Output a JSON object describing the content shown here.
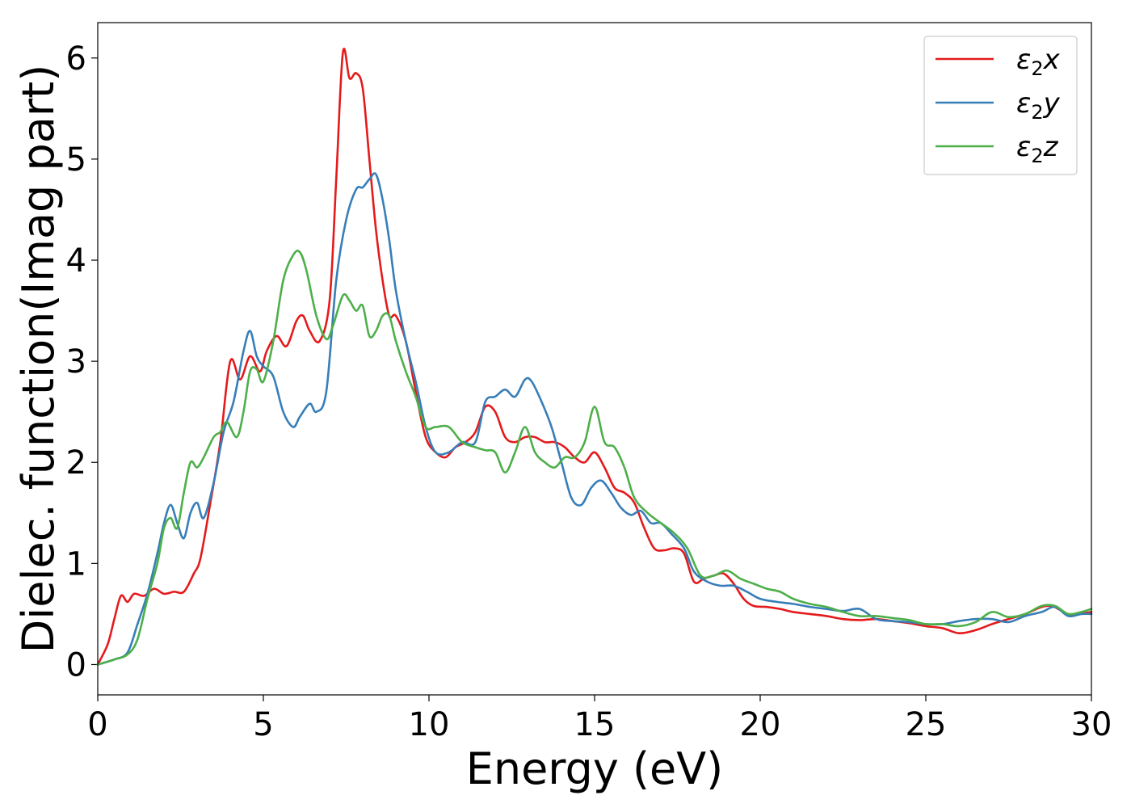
{
  "chart_data": {
    "type": "line",
    "title": "",
    "xlabel": "Energy (eV)",
    "ylabel": "Dielec. function(Imag part)",
    "xlim": [
      0,
      30
    ],
    "ylim": [
      -0.3,
      6.35
    ],
    "xticks": [
      0,
      5,
      10,
      15,
      20,
      25,
      30
    ],
    "yticks": [
      0,
      1,
      2,
      3,
      4,
      5,
      6
    ],
    "grid": false,
    "legend_position": "top-right",
    "series": [
      {
        "name": "ε2x",
        "legend_base": "ε",
        "legend_sub": "2",
        "legend_suffix": "x",
        "color": "#e41a1c",
        "x": [
          0,
          0.3,
          0.5,
          0.7,
          0.9,
          1.1,
          1.4,
          1.7,
          2.0,
          2.3,
          2.6,
          2.9,
          3.1,
          3.4,
          3.7,
          4.0,
          4.3,
          4.6,
          4.9,
          5.1,
          5.4,
          5.7,
          6.0,
          6.2,
          6.4,
          6.7,
          7.0,
          7.2,
          7.4,
          7.6,
          7.8,
          8.0,
          8.2,
          8.4,
          8.6,
          8.8,
          9.0,
          9.3,
          9.6,
          9.9,
          10.2,
          10.5,
          10.8,
          11.1,
          11.4,
          11.7,
          12.0,
          12.3,
          12.6,
          12.9,
          13.2,
          13.5,
          13.8,
          14.1,
          14.4,
          14.7,
          15.0,
          15.3,
          15.6,
          15.9,
          16.2,
          16.5,
          16.8,
          17.1,
          17.4,
          17.7,
          18.0,
          18.3,
          18.6,
          18.9,
          19.2,
          19.5,
          19.8,
          20.2,
          20.6,
          21.0,
          21.5,
          22.0,
          22.5,
          23.0,
          23.5,
          24.0,
          24.5,
          25.0,
          25.5,
          26.0,
          26.5,
          27.0,
          27.5,
          28.0,
          28.5,
          28.8,
          29.0,
          29.3,
          29.6,
          30.0
        ],
        "y": [
          0.0,
          0.2,
          0.45,
          0.68,
          0.62,
          0.7,
          0.68,
          0.75,
          0.7,
          0.72,
          0.72,
          0.9,
          1.05,
          1.6,
          2.2,
          3.0,
          2.82,
          3.05,
          2.9,
          3.1,
          3.25,
          3.15,
          3.4,
          3.45,
          3.3,
          3.2,
          3.6,
          4.8,
          6.05,
          5.8,
          5.85,
          5.7,
          5.0,
          4.3,
          3.8,
          3.45,
          3.45,
          3.2,
          2.7,
          2.25,
          2.1,
          2.05,
          2.15,
          2.2,
          2.3,
          2.55,
          2.5,
          2.25,
          2.2,
          2.25,
          2.25,
          2.2,
          2.2,
          2.15,
          2.05,
          2.0,
          2.1,
          1.95,
          1.75,
          1.7,
          1.6,
          1.35,
          1.15,
          1.13,
          1.15,
          1.1,
          0.82,
          0.85,
          0.88,
          0.9,
          0.8,
          0.65,
          0.58,
          0.57,
          0.55,
          0.52,
          0.5,
          0.48,
          0.45,
          0.44,
          0.45,
          0.43,
          0.41,
          0.38,
          0.36,
          0.31,
          0.34,
          0.4,
          0.45,
          0.5,
          0.57,
          0.58,
          0.55,
          0.5,
          0.5,
          0.52
        ]
      },
      {
        "name": "ε2y",
        "legend_base": "ε",
        "legend_sub": "2",
        "legend_suffix": "y",
        "color": "#377eb8",
        "x": [
          0,
          0.5,
          0.9,
          1.2,
          1.5,
          1.8,
          2.0,
          2.2,
          2.4,
          2.6,
          2.8,
          3.0,
          3.2,
          3.5,
          3.8,
          4.1,
          4.4,
          4.6,
          4.8,
          5.0,
          5.3,
          5.6,
          5.9,
          6.1,
          6.4,
          6.6,
          6.9,
          7.2,
          7.5,
          7.8,
          8.0,
          8.2,
          8.4,
          8.6,
          8.8,
          9.0,
          9.3,
          9.6,
          9.9,
          10.2,
          10.6,
          11.0,
          11.4,
          11.7,
          12.0,
          12.3,
          12.6,
          12.9,
          13.1,
          13.4,
          13.7,
          14.0,
          14.3,
          14.6,
          14.9,
          15.2,
          15.5,
          15.8,
          16.1,
          16.4,
          16.7,
          17.0,
          17.3,
          17.7,
          18.0,
          18.4,
          18.8,
          19.2,
          19.6,
          20.0,
          20.5,
          21.0,
          21.5,
          22.0,
          22.5,
          23.0,
          23.5,
          24.0,
          24.5,
          25.0,
          25.5,
          26.0,
          26.5,
          27.0,
          27.5,
          28.0,
          28.5,
          28.9,
          29.3,
          29.7,
          30.0
        ],
        "y": [
          0.0,
          0.05,
          0.12,
          0.4,
          0.7,
          1.1,
          1.4,
          1.58,
          1.4,
          1.25,
          1.5,
          1.6,
          1.45,
          1.8,
          2.3,
          2.6,
          3.1,
          3.3,
          3.05,
          2.95,
          2.85,
          2.5,
          2.35,
          2.45,
          2.58,
          2.5,
          2.7,
          3.8,
          4.4,
          4.7,
          4.72,
          4.8,
          4.85,
          4.6,
          4.2,
          3.7,
          3.2,
          2.8,
          2.35,
          2.1,
          2.1,
          2.2,
          2.2,
          2.6,
          2.65,
          2.72,
          2.65,
          2.82,
          2.8,
          2.6,
          2.35,
          2.0,
          1.65,
          1.58,
          1.75,
          1.82,
          1.7,
          1.55,
          1.48,
          1.52,
          1.4,
          1.4,
          1.3,
          1.15,
          0.92,
          0.82,
          0.78,
          0.78,
          0.72,
          0.65,
          0.62,
          0.6,
          0.57,
          0.55,
          0.53,
          0.55,
          0.45,
          0.43,
          0.42,
          0.4,
          0.4,
          0.43,
          0.45,
          0.45,
          0.42,
          0.48,
          0.52,
          0.57,
          0.48,
          0.5,
          0.5
        ]
      },
      {
        "name": "ε2z",
        "legend_base": "ε",
        "legend_sub": "2",
        "legend_suffix": "z",
        "color": "#4daf4a",
        "x": [
          0,
          0.5,
          0.9,
          1.2,
          1.5,
          1.8,
          2.0,
          2.2,
          2.4,
          2.6,
          2.8,
          3.0,
          3.2,
          3.5,
          3.7,
          3.9,
          4.2,
          4.4,
          4.6,
          4.8,
          5.0,
          5.3,
          5.6,
          5.9,
          6.1,
          6.3,
          6.6,
          6.9,
          7.1,
          7.4,
          7.6,
          7.8,
          8.0,
          8.2,
          8.4,
          8.6,
          8.8,
          9.0,
          9.3,
          9.6,
          9.9,
          10.2,
          10.6,
          11.0,
          11.4,
          11.7,
          12.0,
          12.3,
          12.6,
          12.9,
          13.2,
          13.5,
          13.8,
          14.1,
          14.4,
          14.7,
          15.0,
          15.3,
          15.6,
          15.9,
          16.2,
          16.6,
          17.0,
          17.4,
          17.8,
          18.2,
          18.6,
          19.0,
          19.4,
          19.8,
          20.2,
          20.6,
          21.0,
          21.5,
          22.0,
          22.5,
          23.0,
          23.5,
          24.0,
          24.5,
          25.0,
          25.5,
          26.0,
          26.5,
          27.0,
          27.5,
          28.0,
          28.5,
          28.9,
          29.3,
          29.7,
          30.0
        ],
        "y": [
          0.0,
          0.05,
          0.1,
          0.25,
          0.65,
          1.0,
          1.35,
          1.45,
          1.35,
          1.7,
          2.0,
          1.95,
          2.05,
          2.25,
          2.3,
          2.4,
          2.25,
          2.5,
          2.9,
          2.92,
          2.8,
          3.2,
          3.8,
          4.05,
          4.08,
          3.9,
          3.45,
          3.22,
          3.35,
          3.65,
          3.6,
          3.5,
          3.55,
          3.25,
          3.3,
          3.45,
          3.45,
          3.2,
          2.9,
          2.65,
          2.35,
          2.35,
          2.35,
          2.2,
          2.15,
          2.12,
          2.1,
          1.9,
          2.1,
          2.35,
          2.1,
          2.0,
          1.95,
          2.05,
          2.05,
          2.2,
          2.55,
          2.2,
          2.15,
          1.95,
          1.65,
          1.5,
          1.4,
          1.3,
          1.15,
          0.88,
          0.88,
          0.93,
          0.85,
          0.8,
          0.75,
          0.72,
          0.65,
          0.6,
          0.57,
          0.52,
          0.48,
          0.48,
          0.46,
          0.44,
          0.4,
          0.4,
          0.38,
          0.42,
          0.52,
          0.47,
          0.5,
          0.58,
          0.58,
          0.5,
          0.52,
          0.55
        ]
      }
    ]
  }
}
